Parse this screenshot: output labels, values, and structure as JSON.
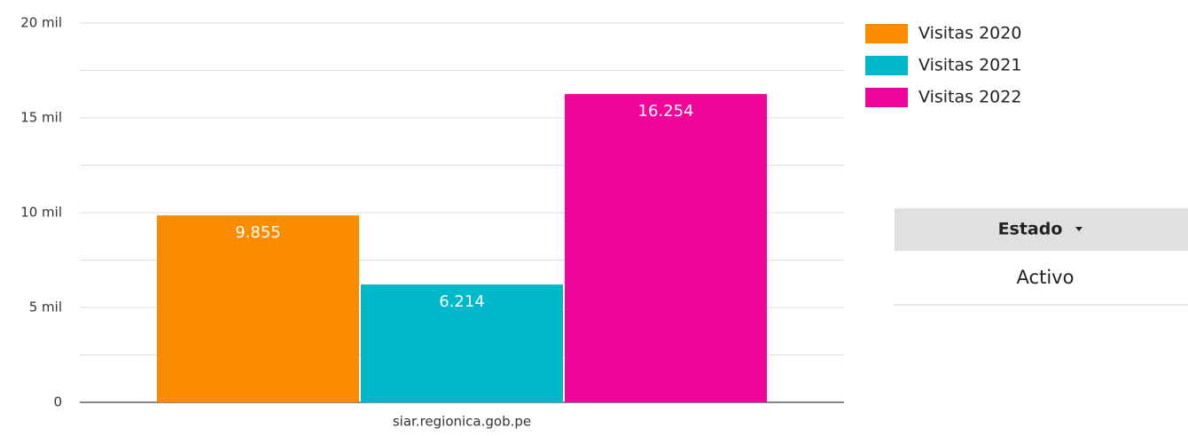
{
  "chart_data": {
    "type": "bar",
    "categories": [
      "siar.regionica.gob.pe"
    ],
    "series": [
      {
        "name": "Visitas 2020",
        "color": "#fb8c00",
        "values": [
          9855
        ],
        "value_labels": [
          "9.855"
        ]
      },
      {
        "name": "Visitas 2021",
        "color": "#00b8cc",
        "values": [
          6214
        ],
        "value_labels": [
          "6.214"
        ]
      },
      {
        "name": "Visitas 2022",
        "color": "#f0049a",
        "values": [
          16254
        ],
        "value_labels": [
          "16.254"
        ]
      }
    ],
    "ylim": [
      0,
      20000
    ],
    "yticks": [
      0,
      {
        "value": 5000,
        "label": "5 mil"
      },
      {
        "value": 10000,
        "label": "10 mil"
      },
      {
        "value": 15000,
        "label": "15 mil"
      },
      {
        "value": 20000,
        "label": "20 mil"
      }
    ],
    "minor_yticks": [
      2500,
      7500,
      12500,
      17500
    ],
    "grid": true,
    "legend": "right"
  },
  "filter": {
    "label": "Estado",
    "value": "Activo"
  }
}
